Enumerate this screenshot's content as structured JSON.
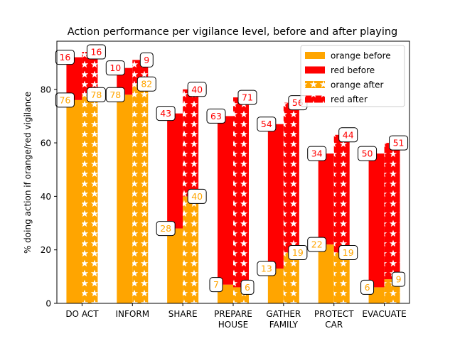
{
  "chart_data": {
    "type": "bar",
    "title": "Action performance per vigilance level, before and after playing",
    "xlabel": "",
    "ylabel": "% doing action if orange/red vigilance",
    "ylim": [
      0,
      98
    ],
    "yticks": [
      0,
      20,
      40,
      60,
      80
    ],
    "categories": [
      "DO ACT",
      "INFORM",
      "SHARE",
      "PREPARE\nHOUSE",
      "GATHER\nFAMILY",
      "PROTECT\nCAR",
      "EVACUATE"
    ],
    "stacking": "red stacked on top of orange, before and after side by side",
    "series": [
      {
        "name": "orange before",
        "group": "before",
        "color": "#FFA500",
        "hatch": "none",
        "values": [
          76,
          78,
          28,
          7,
          13,
          22,
          6
        ]
      },
      {
        "name": "red before",
        "group": "before",
        "color": "#FF0000",
        "hatch": "none",
        "values": [
          16,
          10,
          43,
          63,
          54,
          34,
          50
        ]
      },
      {
        "name": "orange after",
        "group": "after",
        "color": "#FFA500",
        "hatch": "stars",
        "values": [
          78,
          82,
          40,
          6,
          19,
          19,
          9
        ]
      },
      {
        "name": "red after",
        "group": "after",
        "color": "#FF0000",
        "hatch": "stars",
        "values": [
          16,
          9,
          40,
          71,
          56,
          44,
          51
        ]
      }
    ],
    "legend": {
      "position": "top-right",
      "entries": [
        "orange before",
        "red before",
        "orange after",
        "red after"
      ]
    }
  }
}
